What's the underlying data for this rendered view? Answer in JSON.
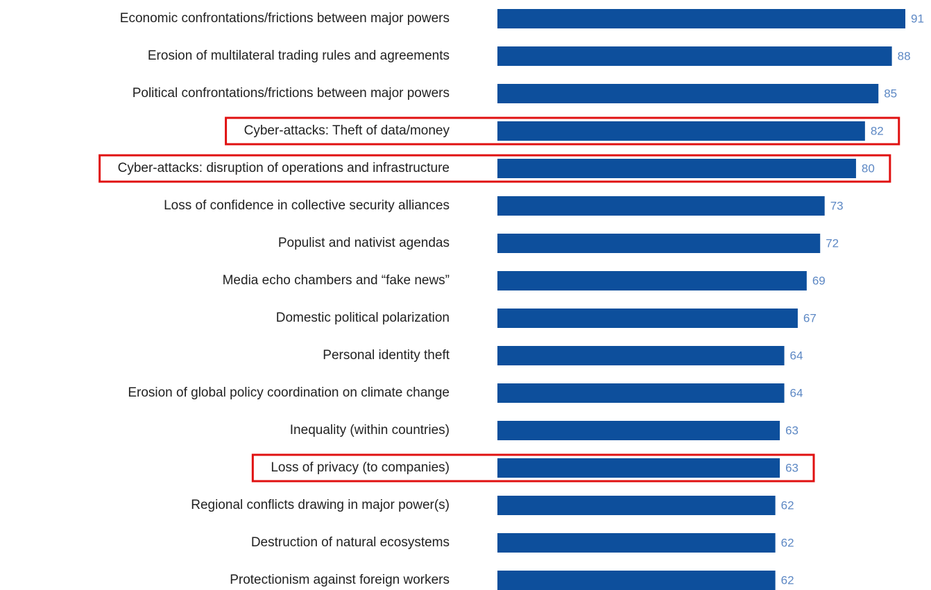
{
  "chart_data": {
    "type": "bar",
    "orientation": "horizontal",
    "categories": [
      "Economic confrontations/frictions between major powers",
      "Erosion of multilateral trading rules and agreements",
      "Political confrontations/frictions between major powers",
      "Cyber-attacks: Theft of data/money",
      "Cyber-attacks: disruption of operations and infrastructure",
      "Loss of confidence in collective security alliances",
      "Populist and nativist agendas",
      "Media echo chambers and “fake news”",
      "Domestic political polarization",
      "Personal identity theft",
      "Erosion of global policy coordination on climate change",
      "Inequality (within countries)",
      "Loss of privacy (to companies)",
      "Regional conflicts drawing in major power(s)",
      "Destruction of natural ecosystems",
      "Protectionism against foreign workers"
    ],
    "values": [
      91,
      88,
      85,
      82,
      80,
      73,
      72,
      69,
      67,
      64,
      64,
      63,
      63,
      62,
      62,
      62
    ],
    "color": "#0d4f9c",
    "value_label_color": "#5d88c4",
    "highlight": [
      3,
      4,
      12
    ],
    "highlight_color": "#e01010"
  }
}
